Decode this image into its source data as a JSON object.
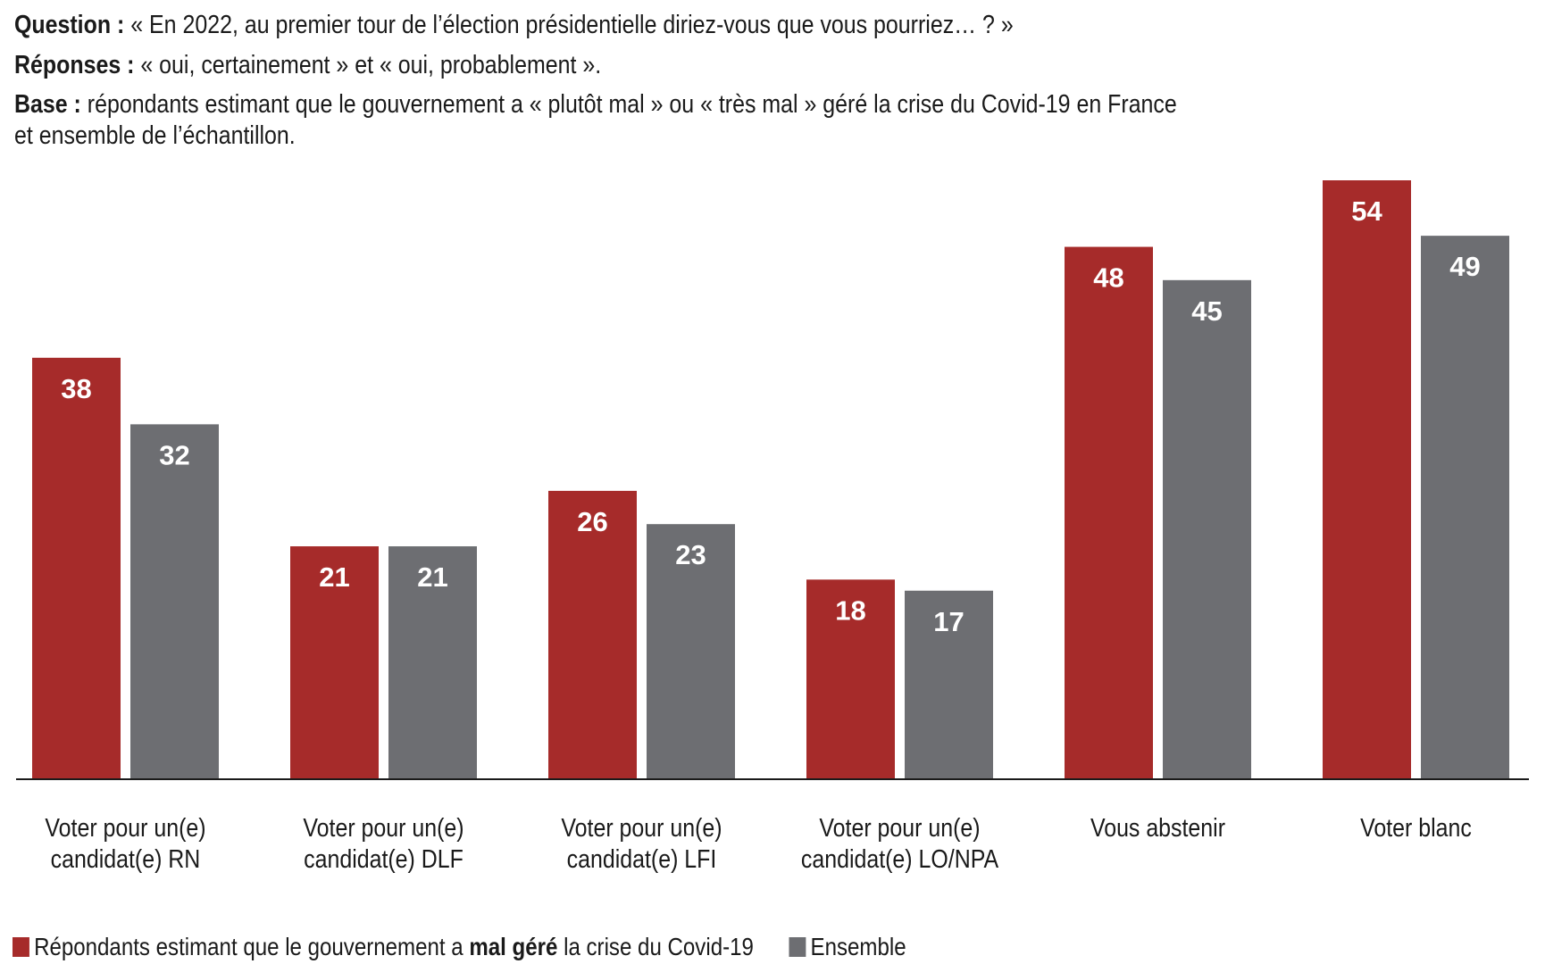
{
  "header": {
    "question_label": "Question :",
    "question_text": "« En 2022, au premier tour de l’élection présidentielle diriez-vous que vous pourriez… ? »",
    "reponses_label": "Réponses :",
    "reponses_text": "« oui, certainement » et « oui, probablement ».",
    "base_label": "Base :",
    "base_text_line1": "répondants estimant que le gouvernement a « plutôt mal » ou « très mal » géré la crise du Covid-19 en France",
    "base_text_line2": "et ensemble de l’échantillon."
  },
  "legend": {
    "series1_pre": "Répondants estimant que le gouvernement a ",
    "series1_bold": "mal géré",
    "series1_post": " la crise du Covid-19",
    "series2": "Ensemble"
  },
  "colors": {
    "series1": "#a62b2a",
    "series2": "#6d6e72",
    "axis": "#1a1a1a",
    "value_label": "#ffffff"
  },
  "chart_data": {
    "type": "bar",
    "categories": [
      [
        "Voter pour un(e)",
        "candidat(e) RN"
      ],
      [
        "Voter pour un(e)",
        "candidat(e) DLF"
      ],
      [
        "Voter pour un(e)",
        "candidat(e) LFI"
      ],
      [
        "Voter pour un(e)",
        "candidat(e) LO/NPA"
      ],
      [
        "Vous abstenir"
      ],
      [
        "Voter blanc"
      ]
    ],
    "series": [
      {
        "name": "Répondants estimant que le gouvernement a mal géré la crise du Covid-19",
        "values": [
          38,
          21,
          26,
          18,
          48,
          54
        ]
      },
      {
        "name": "Ensemble",
        "values": [
          32,
          21,
          23,
          17,
          45,
          49
        ]
      }
    ],
    "ylim": [
      0,
      54
    ],
    "data_labels": true,
    "grid": false,
    "legend_position": "bottom-left"
  }
}
